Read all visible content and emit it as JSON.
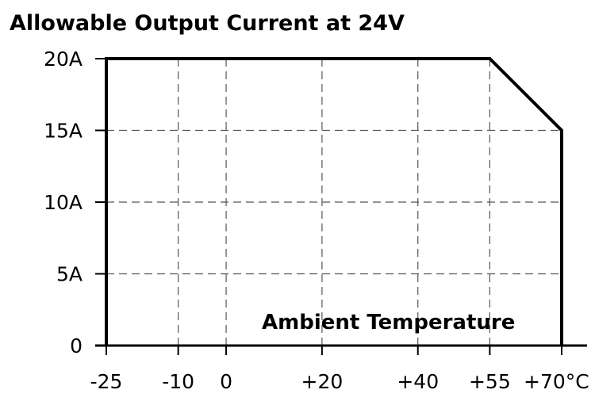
{
  "chart_data": {
    "type": "line",
    "title": "Allowable Output Current at 24V",
    "xlabel": "Ambient Temperature",
    "ylabel": "",
    "x_ticks": [
      {
        "value": -25,
        "label": "-25"
      },
      {
        "value": -10,
        "label": "-10"
      },
      {
        "value": 0,
        "label": "0"
      },
      {
        "value": 20,
        "label": "+20"
      },
      {
        "value": 40,
        "label": "+40"
      },
      {
        "value": 55,
        "label": "+55"
      },
      {
        "value": 70,
        "label": "+70°C"
      }
    ],
    "y_ticks": [
      {
        "value": 0,
        "label": "0"
      },
      {
        "value": 5,
        "label": "5A"
      },
      {
        "value": 10,
        "label": "10A"
      },
      {
        "value": 15,
        "label": "15A"
      },
      {
        "value": 20,
        "label": "20A"
      }
    ],
    "xlim": [
      -25,
      70
    ],
    "ylim": [
      0,
      20
    ],
    "grid": true,
    "series": [
      {
        "x": [
          -25,
          -25,
          55,
          70,
          70
        ],
        "y": [
          0,
          20,
          20,
          15,
          0
        ]
      }
    ]
  }
}
